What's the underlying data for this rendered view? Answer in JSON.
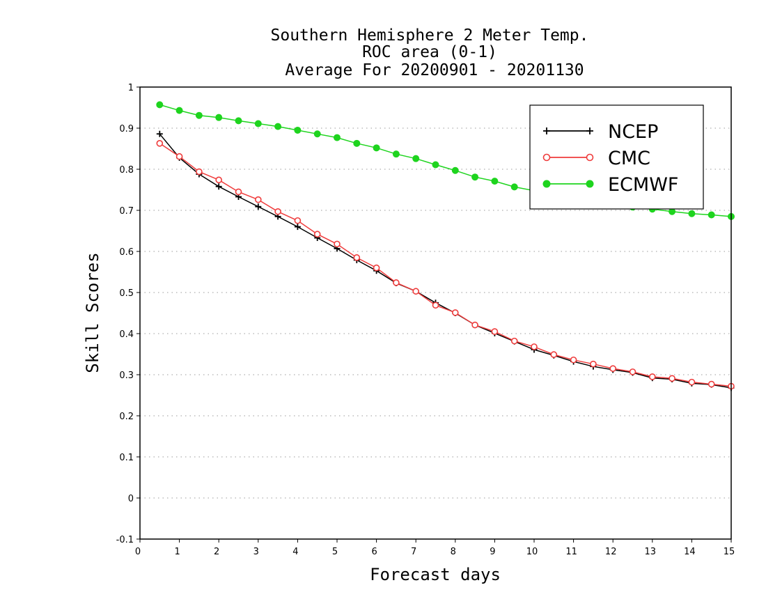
{
  "chart_data": {
    "type": "line",
    "title_lines": [
      "Southern Hemisphere 2 Meter Temp.",
      "ROC area (0-1)",
      "Average For 20200901 - 20201130"
    ],
    "xlabel": "Forecast days",
    "ylabel": "Skill Scores",
    "xlim": [
      0,
      15
    ],
    "ylim": [
      -0.1,
      1
    ],
    "xticks": [
      0,
      1,
      2,
      3,
      4,
      5,
      6,
      7,
      8,
      9,
      10,
      11,
      12,
      13,
      14,
      15
    ],
    "yticks": [
      -0.1,
      0,
      0.1,
      0.2,
      0.3,
      0.4,
      0.5,
      0.6,
      0.7,
      0.8,
      0.9,
      1
    ],
    "ytick_labels": [
      "-0.1",
      "0",
      "0.1",
      "0.2",
      "0.3",
      "0.4",
      "0.5",
      "0.6",
      "0.7",
      "0.8",
      "0.9",
      "1"
    ],
    "grid": "horizontal dotted",
    "legend_position": "top-right",
    "x": [
      0.5,
      1,
      1.5,
      2,
      2.5,
      3,
      3.5,
      4,
      4.5,
      5,
      5.5,
      6,
      6.5,
      7,
      7.5,
      8,
      8.5,
      9,
      9.5,
      10,
      10.5,
      11,
      11.5,
      12,
      12.5,
      13,
      13.5,
      14,
      14.5,
      15
    ],
    "series": [
      {
        "name": "NCEP",
        "color": "#000000",
        "marker": "plus",
        "values": [
          0.886,
          0.828,
          0.788,
          0.758,
          0.733,
          0.709,
          0.685,
          0.66,
          0.633,
          0.607,
          0.579,
          0.553,
          0.523,
          0.503,
          0.475,
          0.45,
          0.421,
          0.401,
          0.381,
          0.361,
          0.347,
          0.332,
          0.32,
          0.312,
          0.305,
          0.292,
          0.289,
          0.279,
          0.276,
          0.268
        ]
      },
      {
        "name": "CMC",
        "color": "#ef3c3c",
        "marker": "open-circle",
        "values": [
          0.863,
          0.831,
          0.794,
          0.774,
          0.745,
          0.726,
          0.697,
          0.675,
          0.642,
          0.618,
          0.585,
          0.56,
          0.524,
          0.503,
          0.469,
          0.451,
          0.421,
          0.405,
          0.382,
          0.368,
          0.349,
          0.336,
          0.326,
          0.315,
          0.307,
          0.295,
          0.291,
          0.282,
          0.277,
          0.272
        ]
      },
      {
        "name": "ECMWF",
        "color": "#1ed41e",
        "marker": "filled-circle",
        "values": [
          0.957,
          0.943,
          0.931,
          0.926,
          0.918,
          0.911,
          0.904,
          0.895,
          0.886,
          0.877,
          0.863,
          0.852,
          0.837,
          0.826,
          0.811,
          0.797,
          0.781,
          0.771,
          0.757,
          0.748,
          0.74,
          0.735,
          0.728,
          0.72,
          0.708,
          0.703,
          0.697,
          0.692,
          0.689,
          0.685
        ]
      }
    ]
  }
}
